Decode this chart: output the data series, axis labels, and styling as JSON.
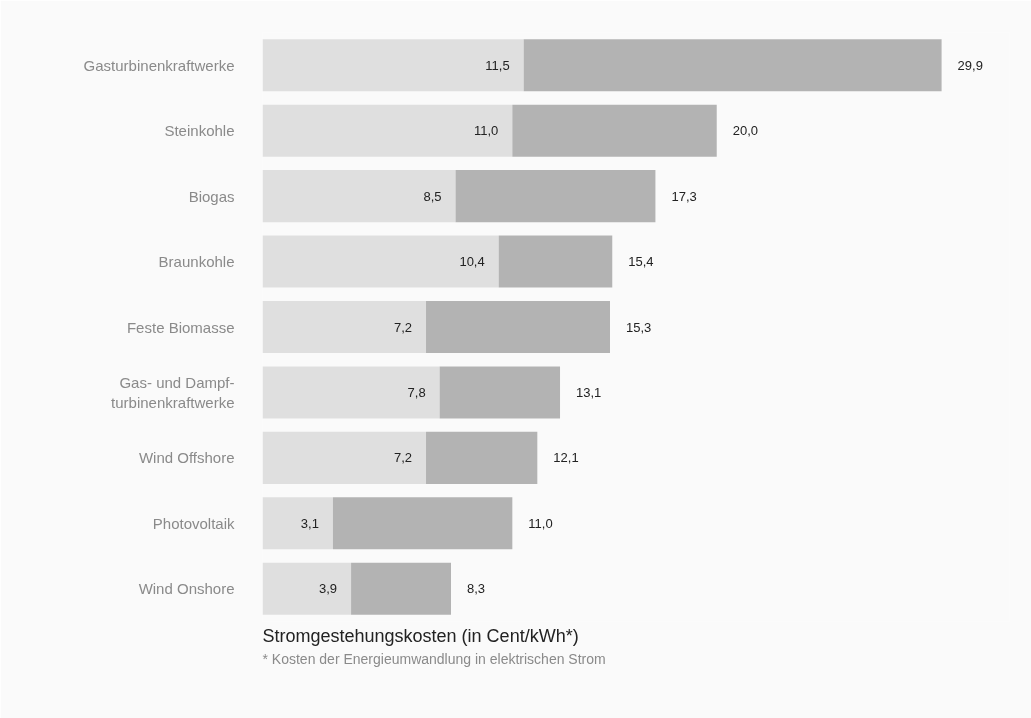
{
  "chart_data": {
    "type": "bar",
    "orientation": "horizontal",
    "stacked": true,
    "xlabel": "Stromgestehungskosten (in Cent/kWh*)",
    "categories": [
      "Gasturbinenkraftwerke",
      "Steinkohle",
      "Biogas",
      "Braunkohle",
      "Feste Biomasse",
      "Gas- und Dampf-\nturbinenkraftwerke",
      "Wind Offshore",
      "Photovoltaik",
      "Wind Onshore"
    ],
    "series": [
      {
        "color": "#dfdfdf",
        "values": [
          11.5,
          11.0,
          8.5,
          10.4,
          7.2,
          7.8,
          7.2,
          3.1,
          3.9
        ],
        "value_labels": [
          "11,5",
          "11,0",
          "8,5",
          "10,4",
          "7,2",
          "7,8",
          "7,2",
          "3,1",
          "3,9"
        ]
      },
      {
        "color": "#b3b3b3",
        "values": [
          18.4,
          9.0,
          8.8,
          5.0,
          8.1,
          5.3,
          4.9,
          7.9,
          4.4
        ]
      }
    ],
    "totals": [
      "29,9",
      "20,0",
      "17,3",
      "15,4",
      "15,3",
      "13,1",
      "12,1",
      "11,0",
      "8,3"
    ],
    "annotations": [
      "* Kosten der Energieumwandlung in elektrischen Strom"
    ]
  }
}
